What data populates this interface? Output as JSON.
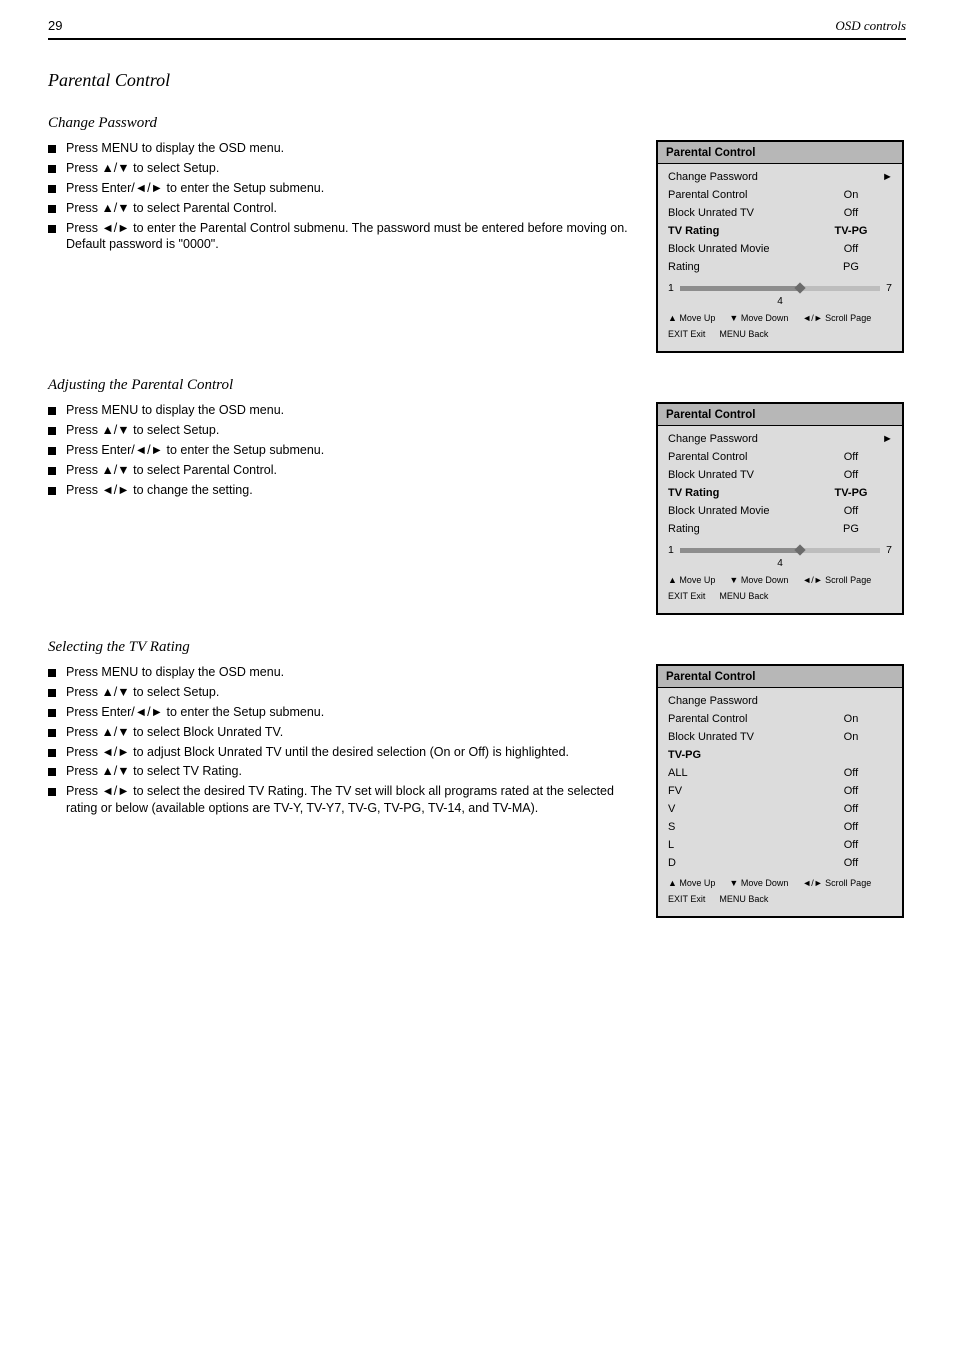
{
  "colors": {
    "page_bg": "#ffffff",
    "text": "#000000",
    "osd_border": "#000000",
    "osd_bg": "#dcdcdc",
    "osd_title_bg": "#b7b7b7",
    "slider_track": "#bdbdbd",
    "slider_fill": "#8d8d8d",
    "slider_knob": "#6b6b6b",
    "rule": "#000000"
  },
  "typography": {
    "body_family": "Arial, Helvetica, sans-serif",
    "heading_family": "\"Times New Roman\", serif",
    "body_size_pt": 10,
    "heading_size_pt": 14,
    "subheading_size_pt": 12,
    "osd_title_size_pt": 9,
    "osd_row_size_pt": 8.5,
    "osd_hint_size_pt": 7
  },
  "glyphs": {
    "up": "▲",
    "down": "▼",
    "left": "◄",
    "right": "►",
    "up_down": "▲/▼",
    "left_right": "◄/►",
    "square": "■"
  },
  "topbar": {
    "page": "29",
    "title": "OSD controls"
  },
  "sections": {
    "parental": {
      "heading": "Parental Control",
      "sub_password": {
        "heading": "Change Password",
        "steps": [
          {
            "t": "Press MENU to display the OSD menu."
          },
          {
            "pre": "Press ",
            "g": "up_down",
            "post": " to select Setup."
          },
          {
            "pre": "Press Enter/",
            "g": "left_right",
            "post": " to enter the Setup submenu."
          },
          {
            "pre": "Press ",
            "g": "up_down",
            "post": " to select Parental Control."
          },
          {
            "pre": "Press ",
            "g": "left_right",
            "post": " to enter the Parental Control submenu. The password must be entered before moving on. Default password is \"0000\"."
          }
        ],
        "osd": {
          "title": "Parental Control",
          "rows": [
            {
              "label": "Change Password",
              "val": "",
              "chev": true
            },
            {
              "label": "Parental Control",
              "val": "On",
              "chev": false
            },
            {
              "label": "Block Unrated TV",
              "val": "Off",
              "chev": false
            },
            {
              "label": "TV Rating",
              "val": "TV-PG",
              "chev": false
            },
            {
              "label": "Block Unrated Movie",
              "val": "Off",
              "chev": false
            },
            {
              "label": "Rating",
              "val": "PG",
              "chev": false
            }
          ],
          "active_row_index": 3,
          "slider": {
            "min": 1,
            "mid": 4,
            "max": 7,
            "value_pct": 60
          },
          "hints": [
            {
              "g": "up",
              "t": "Move Up"
            },
            {
              "g": "down",
              "t": "Move Down"
            },
            {
              "g": "left_right",
              "t": "Scroll Page"
            },
            {
              "g": null,
              "t": "EXIT Exit"
            },
            {
              "g": null,
              "t": "MENU Back"
            }
          ]
        }
      },
      "sub_onoff": {
        "heading": "Adjusting the Parental Control",
        "steps": [
          {
            "t": "Press MENU to display the OSD menu."
          },
          {
            "pre": "Press ",
            "g": "up_down",
            "post": " to select Setup."
          },
          {
            "pre": "Press Enter/",
            "g": "left_right",
            "post": " to enter the Setup submenu."
          },
          {
            "pre": "Press ",
            "g": "up_down",
            "post": " to select Parental Control."
          },
          {
            "pre": "Press ",
            "g": "left_right",
            "post": " to change the setting."
          }
        ],
        "osd": {
          "title": "Parental Control",
          "rows": [
            {
              "label": "Change Password",
              "val": "",
              "chev": true
            },
            {
              "label": "Parental Control",
              "val": "Off",
              "chev": false
            },
            {
              "label": "Block Unrated TV",
              "val": "Off",
              "chev": false
            },
            {
              "label": "TV Rating",
              "val": "TV-PG",
              "chev": false
            },
            {
              "label": "Block Unrated Movie",
              "val": "Off",
              "chev": false
            },
            {
              "label": "Rating",
              "val": "PG",
              "chev": false
            }
          ],
          "active_row_index": 3,
          "slider": {
            "min": 1,
            "mid": 4,
            "max": 7,
            "value_pct": 60
          },
          "hints": [
            {
              "g": "up",
              "t": "Move Up"
            },
            {
              "g": "down",
              "t": "Move Down"
            },
            {
              "g": "left_right",
              "t": "Scroll Page"
            },
            {
              "g": null,
              "t": "EXIT Exit"
            },
            {
              "g": null,
              "t": "MENU Back"
            }
          ]
        }
      },
      "sub_tvrating": {
        "heading": "Selecting the TV Rating",
        "steps": [
          {
            "t": "Press MENU to display the OSD menu."
          },
          {
            "pre": "Press ",
            "g": "up_down",
            "post": " to select Setup."
          },
          {
            "pre": "Press Enter/",
            "g": "left_right",
            "post": " to enter the Setup submenu."
          },
          {
            "pre": "Press ",
            "g": "up_down",
            "post": " to select Block Unrated TV."
          },
          {
            "pre": "Press ",
            "g": "left_right",
            "post": " to adjust Block Unrated TV until the desired selection (On or Off) is highlighted."
          },
          {
            "pre": "Press ",
            "g": "up_down",
            "post": " to select TV Rating."
          },
          {
            "pre": "Press ",
            "g": "left_right",
            "post": " to select the desired TV Rating. The TV set will block all programs rated at the selected rating or below (available options are TV-Y, TV-Y7, TV-G, TV-PG, TV-14, and TV-MA)."
          }
        ],
        "osd": {
          "title": "Parental Control",
          "rows": [
            {
              "label": "Change Password",
              "val": "",
              "chev": false
            },
            {
              "label": "Parental Control",
              "val": "On",
              "chev": false
            },
            {
              "label": "Block Unrated TV",
              "val": "On",
              "chev": false
            },
            {
              "label": "TV-PG",
              "val": "",
              "chev": false
            },
            {
              "label": "ALL",
              "val": "Off",
              "chev": false
            },
            {
              "label": "FV",
              "val": "Off",
              "chev": false
            },
            {
              "label": "V",
              "val": "Off",
              "chev": false
            },
            {
              "label": "S",
              "val": "Off",
              "chev": false
            },
            {
              "label": "L",
              "val": "Off",
              "chev": false
            },
            {
              "label": "D",
              "val": "Off",
              "chev": false
            }
          ],
          "active_row_index": 3,
          "slider": null,
          "hints": [
            {
              "g": "up",
              "t": "Move Up"
            },
            {
              "g": "down",
              "t": "Move Down"
            },
            {
              "g": "left_right",
              "t": "Scroll Page"
            },
            {
              "g": null,
              "t": "EXIT Exit"
            },
            {
              "g": null,
              "t": "MENU Back"
            }
          ]
        }
      }
    }
  }
}
